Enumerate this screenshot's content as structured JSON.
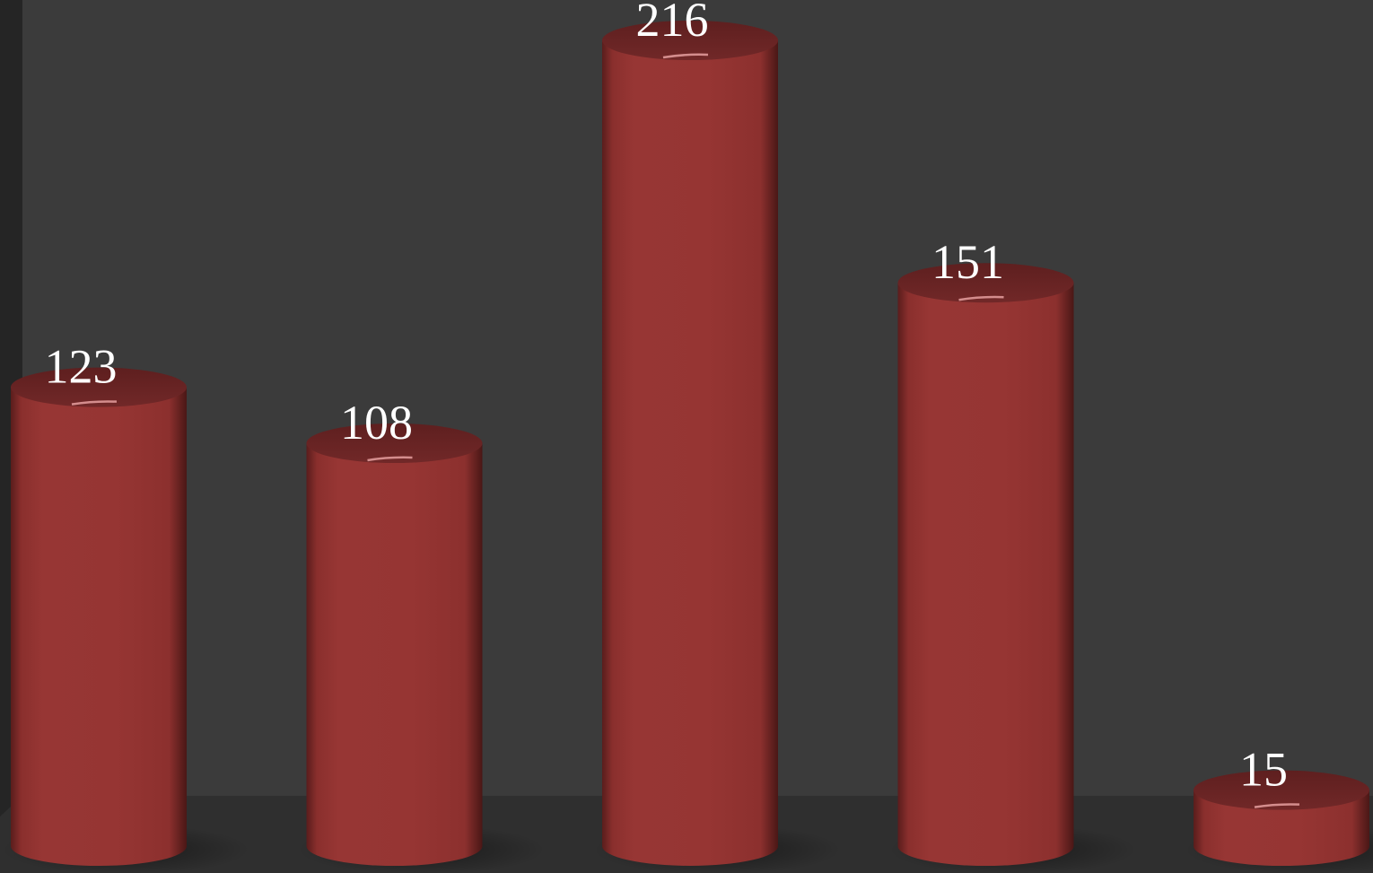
{
  "chart_data": {
    "type": "bar",
    "style": "3d-cylinder",
    "categories": [
      "",
      "",
      "",
      "",
      ""
    ],
    "values": [
      123,
      108,
      216,
      151,
      15
    ],
    "data_labels": [
      "123",
      "108",
      "216",
      "151",
      "15"
    ],
    "title": "",
    "xlabel": "",
    "ylabel": "",
    "ylim": [
      0,
      224
    ],
    "grid": false,
    "legend": "none",
    "colors": {
      "bar": "#963533",
      "bar_top": "#6a2424",
      "background": "#3b3b3b",
      "floor": "#2f2f2f",
      "wall_edge": "#252525",
      "label": "#ffffff"
    }
  }
}
